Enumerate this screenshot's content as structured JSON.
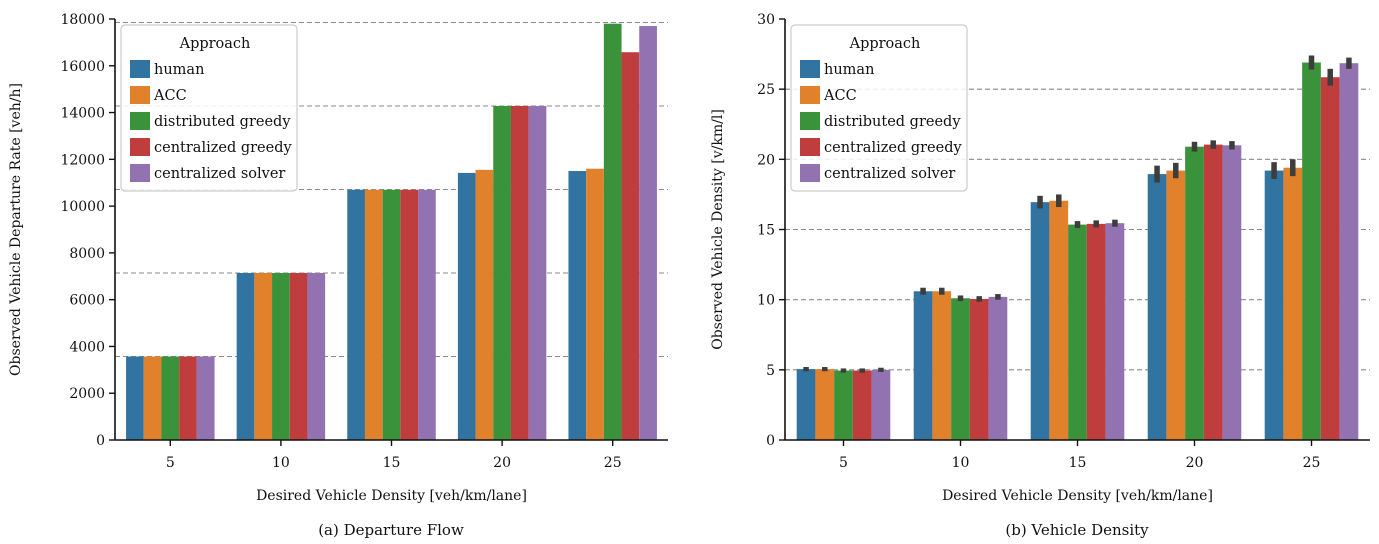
{
  "chart_data": [
    {
      "type": "bar",
      "caption": "(a) Departure Flow",
      "xlabel": "Desired Vehicle Density [veh/km/lane]",
      "ylabel": "Observed Vehicle Departure Rate [veh/h]",
      "categories": [
        "5",
        "10",
        "15",
        "20",
        "25"
      ],
      "ylim": [
        0,
        18000
      ],
      "yticks": [
        0,
        2000,
        4000,
        6000,
        8000,
        10000,
        12000,
        14000,
        16000,
        18000
      ],
      "reference_lines": [
        3570,
        7140,
        10710,
        14280,
        17850
      ],
      "legend": {
        "title": "Approach",
        "placement": "top-left"
      },
      "grid": false,
      "series": [
        {
          "name": "human",
          "color": "#3274a1",
          "values": [
            3570,
            7140,
            10700,
            11420,
            11500
          ]
        },
        {
          "name": "ACC",
          "color": "#e1812c",
          "values": [
            3570,
            7140,
            10700,
            11550,
            11600
          ]
        },
        {
          "name": "distributed greedy",
          "color": "#3a923a",
          "values": [
            3570,
            7140,
            10700,
            14280,
            17800
          ]
        },
        {
          "name": "centralized greedy",
          "color": "#c03d3e",
          "values": [
            3570,
            7140,
            10700,
            14280,
            16580
          ]
        },
        {
          "name": "centralized solver",
          "color": "#9372b2",
          "values": [
            3570,
            7140,
            10700,
            14280,
            17700
          ]
        }
      ]
    },
    {
      "type": "bar",
      "caption": "(b) Vehicle Density",
      "xlabel": "Desired Vehicle Density [veh/km/lane]",
      "ylabel": "Observed Vehicle Density [v/km/l]",
      "categories": [
        "5",
        "10",
        "15",
        "20",
        "25"
      ],
      "ylim": [
        0,
        30
      ],
      "yticks": [
        0,
        5,
        10,
        15,
        20,
        25,
        30
      ],
      "reference_lines": [
        5,
        10,
        15,
        20,
        25
      ],
      "legend": {
        "title": "Approach",
        "placement": "top-left"
      },
      "grid": false,
      "error_bar_color": "#3d3d3d",
      "series": [
        {
          "name": "human",
          "color": "#3274a1",
          "values": [
            5.05,
            10.6,
            16.95,
            18.95,
            19.2
          ],
          "err": [
            0.15,
            0.25,
            0.45,
            0.6,
            0.6
          ]
        },
        {
          "name": "ACC",
          "color": "#e1812c",
          "values": [
            5.05,
            10.6,
            17.05,
            19.2,
            19.4
          ],
          "err": [
            0.15,
            0.25,
            0.45,
            0.55,
            0.6
          ]
        },
        {
          "name": "distributed greedy",
          "color": "#3a923a",
          "values": [
            4.95,
            10.1,
            15.35,
            20.9,
            26.9
          ],
          "err": [
            0.15,
            0.2,
            0.25,
            0.35,
            0.5
          ]
        },
        {
          "name": "centralized greedy",
          "color": "#c03d3e",
          "values": [
            4.95,
            10.05,
            15.4,
            21.05,
            25.85
          ],
          "err": [
            0.15,
            0.2,
            0.25,
            0.3,
            0.6
          ]
        },
        {
          "name": "centralized solver",
          "color": "#9372b2",
          "values": [
            5.0,
            10.2,
            15.45,
            21.0,
            26.85
          ],
          "err": [
            0.15,
            0.2,
            0.25,
            0.3,
            0.4
          ]
        }
      ]
    }
  ]
}
